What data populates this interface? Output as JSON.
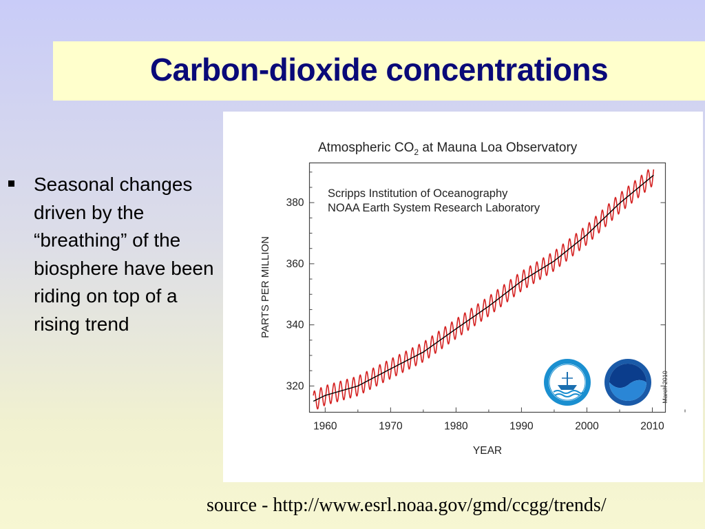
{
  "slide": {
    "title": "Carbon-dioxide concentrations",
    "bullet": "Seasonal changes driven by the “breathing” of the biosphere have been riding on top of a rising trend",
    "source": "source - http://www.esrl.noaa.gov/gmd/ccgg/trends/"
  },
  "chart_data": {
    "type": "line",
    "title_main": "Atmospheric CO",
    "title_sub": "2",
    "title_rest": " at Mauna Loa Observatory",
    "credits": [
      "Scripps Institution of Oceanography",
      "NOAA Earth System Research Laboratory"
    ],
    "xlabel": "YEAR",
    "ylabel": "PARTS PER MILLION",
    "date_note": "March 2010",
    "xlim": [
      1957.6,
      2012.0
    ],
    "ylim": [
      311.4,
      393.0
    ],
    "x_ticks": [
      1960,
      1970,
      1980,
      1990,
      2000,
      2010
    ],
    "y_ticks": [
      320,
      340,
      360,
      380
    ],
    "series": [
      {
        "color": "#d42020",
        "kind": "monthly_seasonal",
        "x_start": 1958.2,
        "x_end": 2010.2,
        "seasonal_amplitude": 3.2
      },
      {
        "color": "#000000",
        "kind": "trend",
        "x": [
          1958.2,
          1960,
          1965,
          1970,
          1975,
          1980,
          1985,
          1990,
          1995,
          2000,
          2005,
          2010.2
        ],
        "y": [
          315.0,
          316.9,
          320.0,
          325.6,
          331.1,
          338.7,
          346.1,
          354.3,
          360.9,
          369.5,
          379.8,
          389.0
        ]
      }
    ],
    "logos": [
      "scripps-seal-icon",
      "noaa-logo-icon"
    ],
    "grid": false,
    "colors": {
      "seasonal": "#d42020",
      "trend": "#000000",
      "title_text": "#0a0a78"
    }
  }
}
